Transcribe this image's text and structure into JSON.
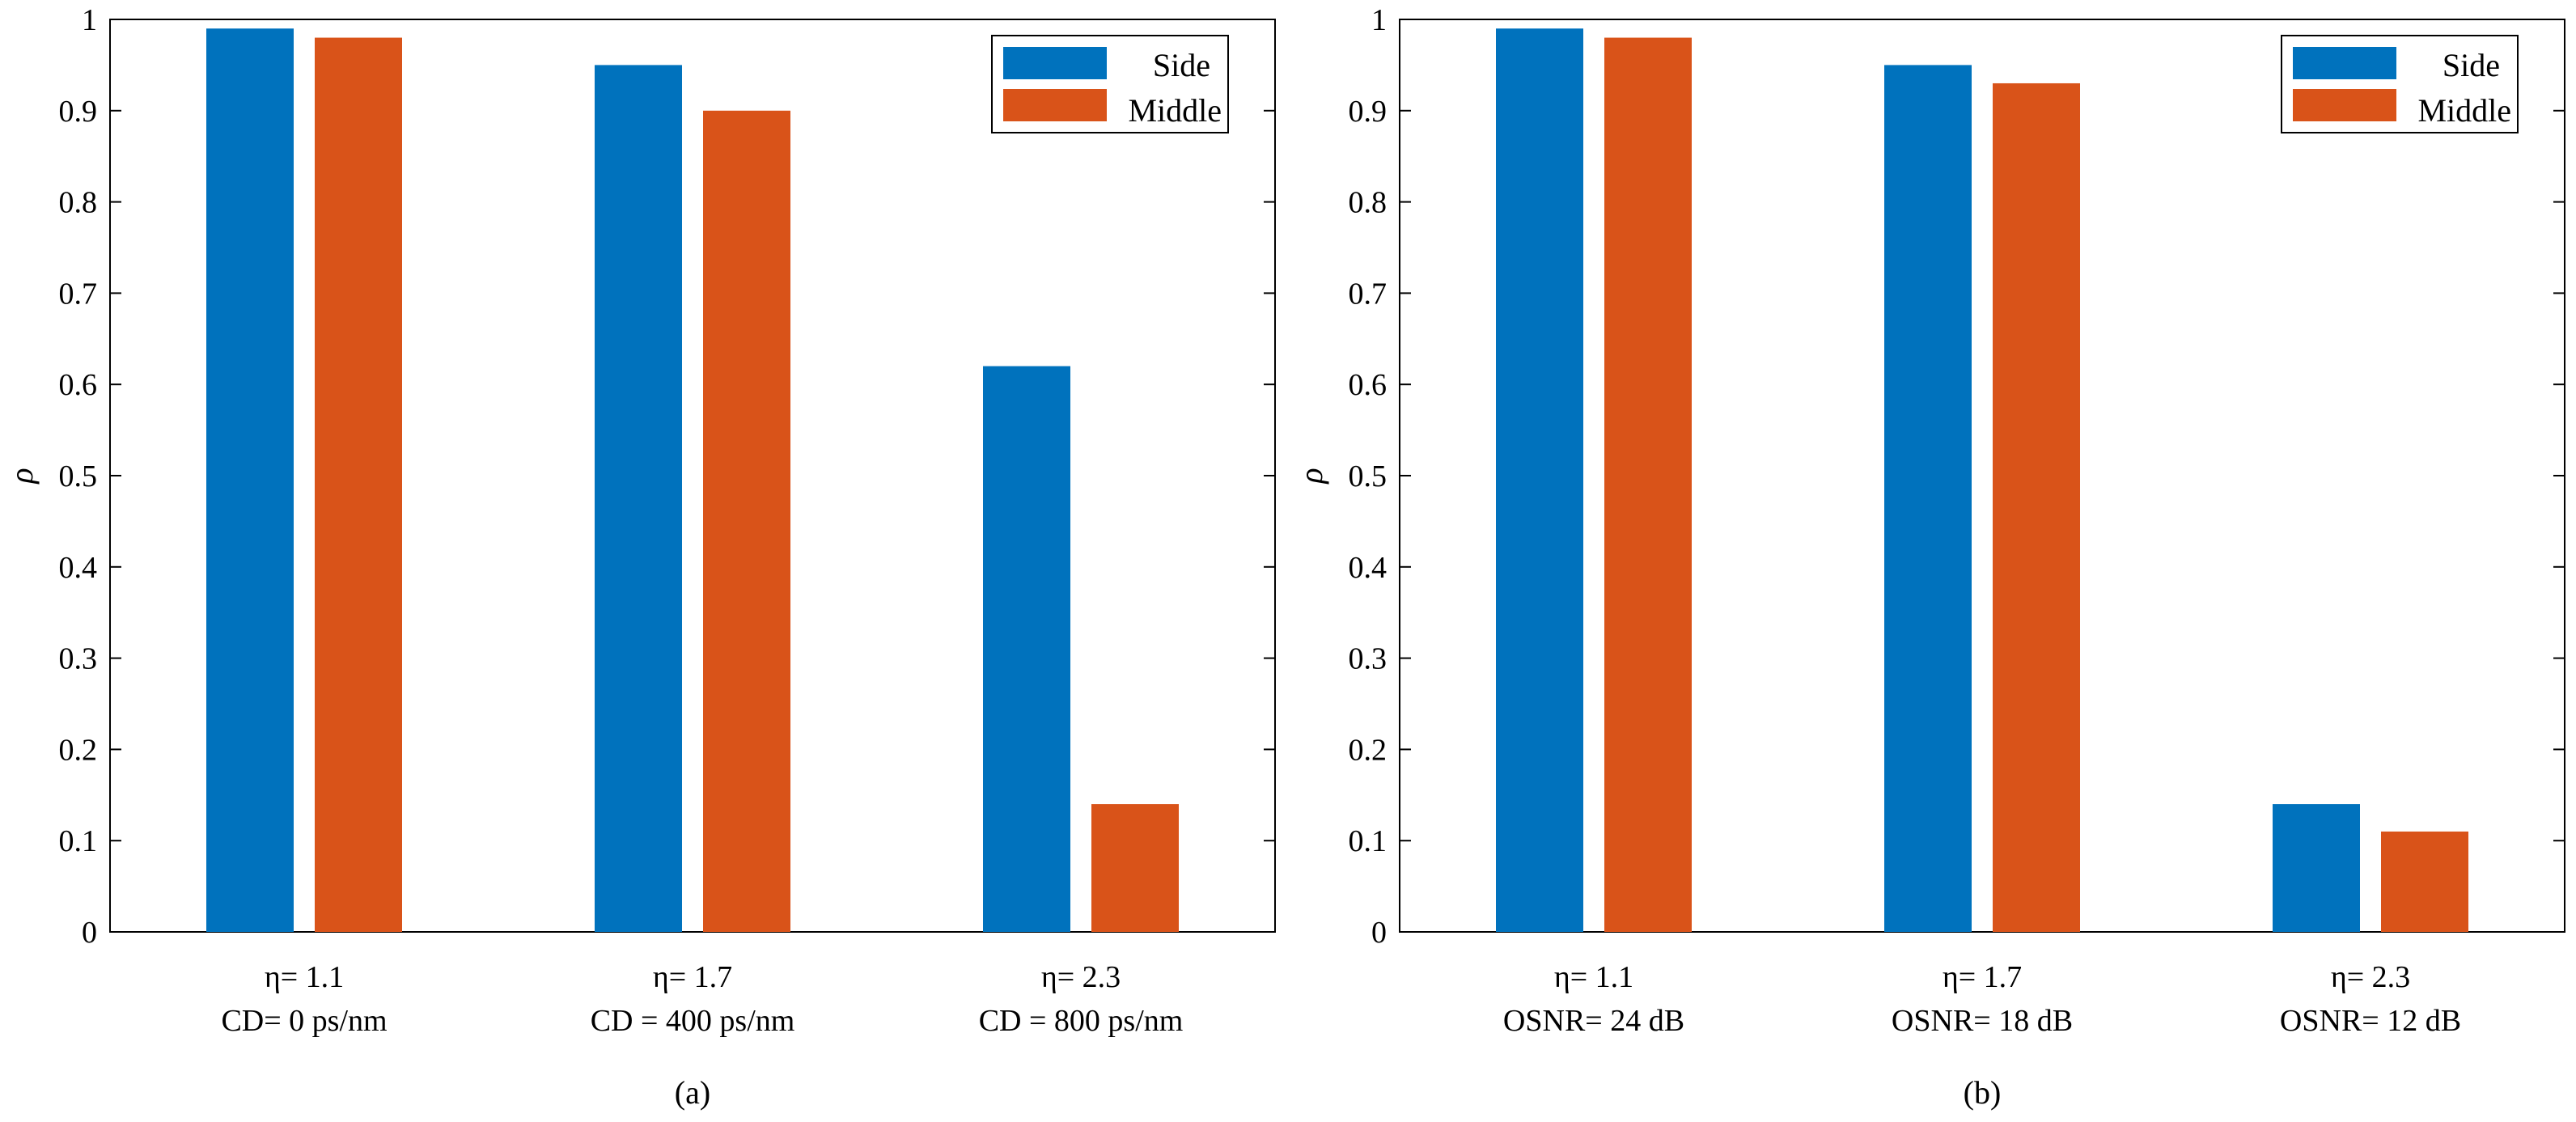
{
  "colors": {
    "side": "#0072BD",
    "middle": "#D95319",
    "axis": "#000000"
  },
  "chart_data": [
    {
      "type": "bar",
      "caption": "(a)",
      "ylabel": "ρ",
      "ylim": [
        0,
        1
      ],
      "yticks": [
        "0",
        "0.1",
        "0.2",
        "0.3",
        "0.4",
        "0.5",
        "0.6",
        "0.7",
        "0.8",
        "0.9",
        "1"
      ],
      "legend_position": "top-right",
      "categories": [
        {
          "line1": "η= 1.1",
          "line2": "CD= 0 ps/nm"
        },
        {
          "line1": "η= 1.7",
          "line2": "CD = 400 ps/nm"
        },
        {
          "line1": "η= 2.3",
          "line2": "CD = 800 ps/nm"
        }
      ],
      "series": [
        {
          "name": "Side",
          "values": [
            0.99,
            0.95,
            0.62
          ]
        },
        {
          "name": "Middle",
          "values": [
            0.98,
            0.9,
            0.14
          ]
        }
      ]
    },
    {
      "type": "bar",
      "caption": "(b)",
      "ylabel": "ρ",
      "ylim": [
        0,
        1
      ],
      "yticks": [
        "0",
        "0.1",
        "0.2",
        "0.3",
        "0.4",
        "0.5",
        "0.6",
        "0.7",
        "0.8",
        "0.9",
        "1"
      ],
      "legend_position": "top-right",
      "categories": [
        {
          "line1": "η= 1.1",
          "line2": "OSNR= 24 dB"
        },
        {
          "line1": "η= 1.7",
          "line2": "OSNR= 18 dB"
        },
        {
          "line1": "η= 2.3",
          "line2": "OSNR= 12 dB"
        }
      ],
      "series": [
        {
          "name": "Side",
          "values": [
            0.99,
            0.95,
            0.14
          ]
        },
        {
          "name": "Middle",
          "values": [
            0.98,
            0.93,
            0.11
          ]
        }
      ]
    }
  ]
}
